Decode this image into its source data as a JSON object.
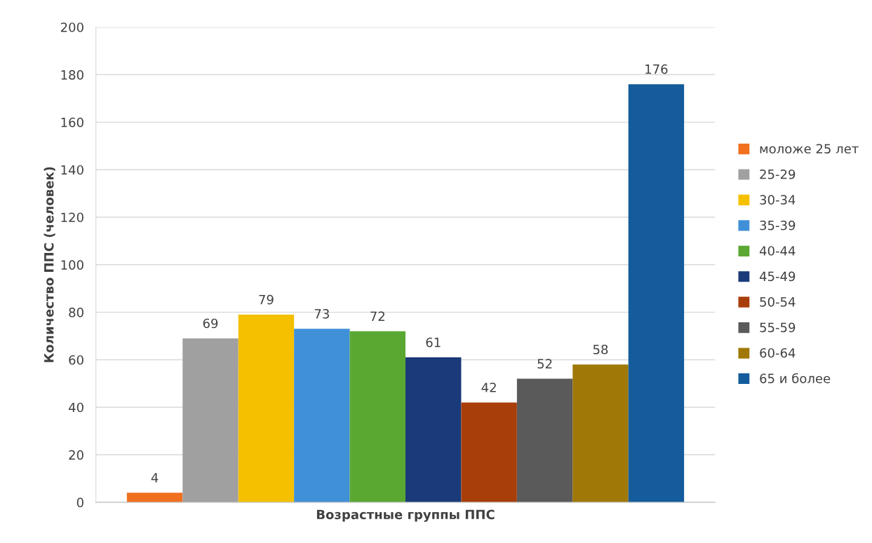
{
  "chart_data": {
    "type": "bar",
    "xlabel": "Возрастные группы ППС",
    "ylabel": "Количество ППС (человек)",
    "categories": [
      null
    ],
    "series": [
      {
        "name": "моложе 25 лет",
        "color": "#f07020",
        "values": [
          4
        ]
      },
      {
        "name": "25-29",
        "color": "#a0a0a0",
        "values": [
          69
        ]
      },
      {
        "name": "30-34",
        "color": "#f5c000",
        "values": [
          79
        ]
      },
      {
        "name": "35-39",
        "color": "#4090d8",
        "values": [
          73
        ]
      },
      {
        "name": "40-44",
        "color": "#5aa832",
        "values": [
          72
        ]
      },
      {
        "name": "45-49",
        "color": "#1a3a7a",
        "values": [
          61
        ]
      },
      {
        "name": "50-54",
        "color": "#a83e0a",
        "values": [
          42
        ]
      },
      {
        "name": "55-59",
        "color": "#5a5a5a",
        "values": [
          52
        ]
      },
      {
        "name": "60-64",
        "color": "#a07808",
        "values": [
          58
        ]
      },
      {
        "name": "65 и более",
        "color": "#145c9c",
        "values": [
          176
        ]
      }
    ],
    "ylim": [
      0,
      200
    ],
    "yticks": [
      0,
      20,
      40,
      60,
      80,
      100,
      120,
      140,
      160,
      180,
      200
    ],
    "grid": "y",
    "legend": "right",
    "data_labels": true
  }
}
